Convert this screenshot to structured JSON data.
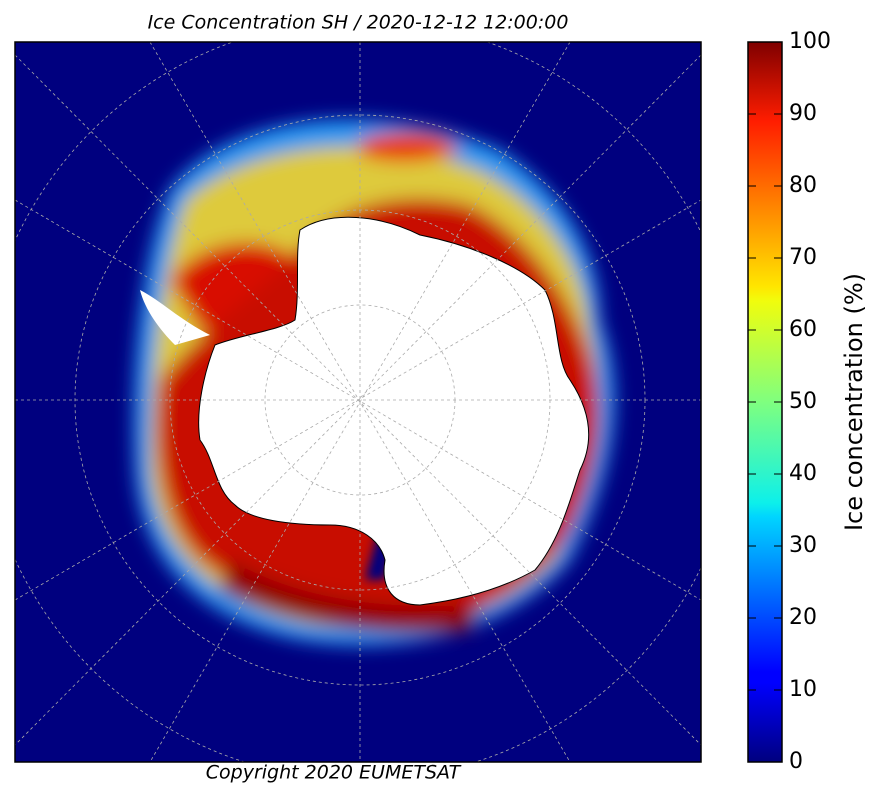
{
  "title": "Ice Concentration SH / 2020-12-12 12:00:00",
  "copyright": "Copyright 2020 EUMETSAT",
  "colorbar": {
    "label": "Ice concentration (%)",
    "lim": [
      0,
      100
    ],
    "ticks": [
      0,
      10,
      20,
      30,
      40,
      50,
      60,
      70,
      80,
      90,
      100
    ]
  }
}
